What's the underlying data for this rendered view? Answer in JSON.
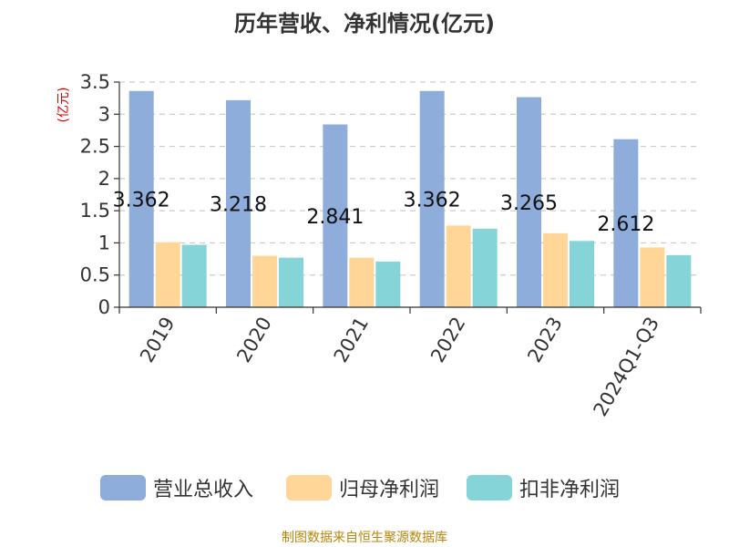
{
  "chart_data": {
    "type": "bar",
    "title": "历年营收、净利情况(亿元)",
    "ylabel": "(亿元)",
    "categories": [
      "2019",
      "2020",
      "2021",
      "2022",
      "2023",
      "2024Q1-Q3"
    ],
    "ylim": [
      0,
      3.5
    ],
    "yticks": [
      "0",
      "0.5",
      "1",
      "1.5",
      "2",
      "2.5",
      "3",
      "3.5"
    ],
    "grid": true,
    "legend_position": "bottom",
    "series": [
      {
        "name": "营业总收入",
        "color": "#8EADDA",
        "values": [
          3.362,
          3.218,
          2.841,
          3.362,
          3.265,
          2.612
        ],
        "labels": [
          "3.362",
          "3.218",
          "2.841",
          "3.362",
          "3.265",
          "2.612"
        ]
      },
      {
        "name": "归母净利润",
        "color": "#FFD697",
        "values": [
          1.01,
          0.8,
          0.77,
          1.27,
          1.15,
          0.93
        ]
      },
      {
        "name": "扣非净利润",
        "color": "#85D4D8",
        "values": [
          0.97,
          0.77,
          0.71,
          1.22,
          1.03,
          0.81
        ]
      }
    ]
  },
  "source": "制图数据来自恒生聚源数据库",
  "colors": {
    "text": "#333333",
    "ylabel": "#E00000",
    "source": "#B8860B",
    "grid": "#CCCCCC"
  }
}
